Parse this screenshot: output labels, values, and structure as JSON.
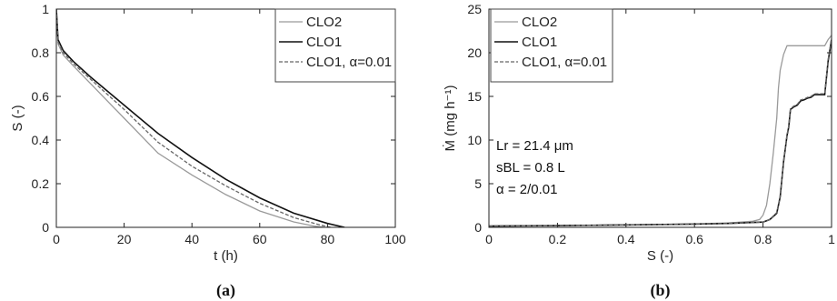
{
  "chart_data": [
    {
      "type": "line",
      "panel_label": "(a)",
      "xlabel": "t (h)",
      "ylabel": "S (-)",
      "xlim": [
        0,
        100
      ],
      "ylim": [
        0,
        1
      ],
      "xticks": [
        "0",
        "20",
        "40",
        "60",
        "80",
        "100"
      ],
      "yticks": [
        "0",
        "0.2",
        "0.4",
        "0.6",
        "0.8",
        "1"
      ],
      "legend_position": "top-right",
      "grid": false,
      "series": [
        {
          "name": "CLO2",
          "color": "#9a9a9a",
          "dash": "solid",
          "x": [
            0,
            0.5,
            2,
            5,
            10,
            20,
            30,
            40,
            50,
            60,
            70,
            76,
            79
          ],
          "y": [
            1.0,
            0.84,
            0.79,
            0.74,
            0.66,
            0.5,
            0.34,
            0.24,
            0.15,
            0.075,
            0.025,
            0.006,
            0.0
          ]
        },
        {
          "name": "CLO1",
          "color": "#111111",
          "dash": "solid",
          "x": [
            0,
            0.5,
            2,
            5,
            10,
            20,
            30,
            40,
            50,
            60,
            70,
            80,
            85
          ],
          "y": [
            1.0,
            0.86,
            0.81,
            0.76,
            0.69,
            0.56,
            0.43,
            0.32,
            0.22,
            0.135,
            0.065,
            0.018,
            0.0
          ]
        },
        {
          "name": "CLO1, α=0.01",
          "color": "#666666",
          "dash": "dashed",
          "x": [
            0,
            0.5,
            2,
            5,
            10,
            20,
            30,
            40,
            50,
            60,
            70,
            78,
            81
          ],
          "y": [
            1.0,
            0.85,
            0.8,
            0.75,
            0.68,
            0.54,
            0.39,
            0.28,
            0.19,
            0.11,
            0.045,
            0.01,
            0.0
          ]
        }
      ]
    },
    {
      "type": "line",
      "panel_label": "(b)",
      "xlabel": "S (-)",
      "ylabel": "Ṁ (mg h⁻¹)",
      "xlim": [
        0,
        1
      ],
      "ylim": [
        0,
        25
      ],
      "xticks": [
        "0",
        "0.2",
        "0.4",
        "0.6",
        "0.8",
        "1"
      ],
      "yticks": [
        "0",
        "5",
        "10",
        "15",
        "20",
        "25"
      ],
      "legend_position": "top-left",
      "grid": false,
      "annotations": [
        "Lr = 21.4 μm",
        "sBL = 0.8 L",
        "α = 2/0.01"
      ],
      "series": [
        {
          "name": "CLO2",
          "color": "#9a9a9a",
          "dash": "solid",
          "x": [
            0,
            0.2,
            0.4,
            0.6,
            0.7,
            0.77,
            0.79,
            0.8,
            0.81,
            0.82,
            0.83,
            0.84,
            0.845,
            0.85,
            0.86,
            0.87,
            0.88,
            0.9,
            0.92,
            0.95,
            0.98,
            0.99,
            1.0
          ],
          "y": [
            0.15,
            0.2,
            0.28,
            0.4,
            0.5,
            0.7,
            0.9,
            1.4,
            2.5,
            5.0,
            8.5,
            12.5,
            16.0,
            18.0,
            19.8,
            20.8,
            20.8,
            20.8,
            20.8,
            20.8,
            20.8,
            21.5,
            22.0
          ]
        },
        {
          "name": "CLO1",
          "color": "#111111",
          "dash": "solid",
          "x": [
            0,
            0.2,
            0.4,
            0.6,
            0.7,
            0.8,
            0.82,
            0.84,
            0.85,
            0.86,
            0.87,
            0.875,
            0.88,
            0.89,
            0.9,
            0.91,
            0.92,
            0.93,
            0.94,
            0.95,
            0.96,
            0.97,
            0.98,
            0.99,
            1.0
          ],
          "y": [
            0.15,
            0.2,
            0.28,
            0.38,
            0.45,
            0.6,
            0.9,
            1.6,
            3.5,
            7.5,
            10.5,
            11.5,
            13.5,
            13.8,
            14.0,
            14.5,
            14.6,
            14.8,
            14.9,
            15.2,
            15.2,
            15.2,
            15.2,
            19.0,
            21.5
          ]
        },
        {
          "name": "CLO1, α=0.01",
          "color": "#666666",
          "dash": "dashed",
          "x": [
            0,
            0.2,
            0.4,
            0.6,
            0.7,
            0.8,
            0.82,
            0.84,
            0.85,
            0.86,
            0.87,
            0.875,
            0.88,
            0.89,
            0.9,
            0.91,
            0.92,
            0.93,
            0.94,
            0.95,
            0.96,
            0.97,
            0.98,
            0.99,
            1.0
          ],
          "y": [
            0.15,
            0.2,
            0.28,
            0.38,
            0.45,
            0.6,
            0.9,
            1.7,
            3.6,
            7.6,
            10.6,
            11.6,
            13.6,
            13.9,
            14.1,
            14.6,
            14.7,
            14.9,
            15.0,
            15.3,
            15.3,
            15.3,
            15.3,
            19.2,
            21.7
          ]
        }
      ]
    }
  ]
}
